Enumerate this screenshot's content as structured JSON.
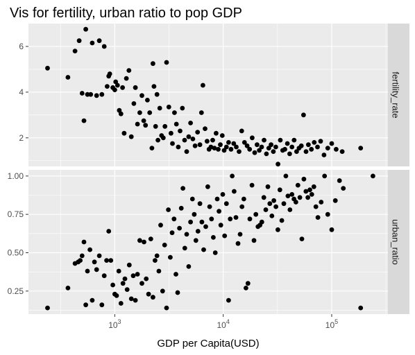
{
  "chart_data": {
    "type": "scatter",
    "title": "Vis for fertility, urban ratio to pop GDP",
    "xlabel": "GDP per Capita(USD)",
    "x_scale": "log10",
    "xlim": [
      160,
      330000
    ],
    "x_ticks": [
      1000,
      10000,
      100000
    ],
    "x_tick_labels": [
      {
        "base": "10",
        "exp": "3"
      },
      {
        "base": "10",
        "exp": "4"
      },
      {
        "base": "10",
        "exp": "5"
      }
    ],
    "grid": true,
    "point_color": "#000000",
    "panel_background": "#ebebeb",
    "strip_background": "#d9d9d9",
    "panels": [
      {
        "strip_label": "fertility_rate",
        "ylim": [
          0.75,
          7.0
        ],
        "y_ticks": [
          2,
          4,
          6
        ],
        "y_tick_labels": [
          "2",
          "4",
          "6"
        ],
        "points": [
          [
            240,
            5.05
          ],
          [
            370,
            4.65
          ],
          [
            430,
            5.8
          ],
          [
            470,
            6.25
          ],
          [
            500,
            3.95
          ],
          [
            520,
            2.75
          ],
          [
            540,
            6.75
          ],
          [
            560,
            3.9
          ],
          [
            600,
            3.9
          ],
          [
            620,
            6.15
          ],
          [
            680,
            3.85
          ],
          [
            720,
            6.25
          ],
          [
            760,
            3.9
          ],
          [
            800,
            6.0
          ],
          [
            850,
            4.25
          ],
          [
            880,
            4.7
          ],
          [
            900,
            4.8
          ],
          [
            960,
            4.2
          ],
          [
            1000,
            4.1
          ],
          [
            1020,
            4.45
          ],
          [
            1060,
            4.3
          ],
          [
            1100,
            3.2
          ],
          [
            1140,
            3.05
          ],
          [
            1180,
            4.2
          ],
          [
            1220,
            2.2
          ],
          [
            1280,
            4.6
          ],
          [
            1350,
            4.95
          ],
          [
            1420,
            2.05
          ],
          [
            1500,
            3.5
          ],
          [
            1550,
            4.2
          ],
          [
            1620,
            2.6
          ],
          [
            1700,
            3.1
          ],
          [
            1780,
            3.85
          ],
          [
            1850,
            2.75
          ],
          [
            1920,
            2.55
          ],
          [
            2000,
            3.65
          ],
          [
            2100,
            3.1
          ],
          [
            2200,
            1.55
          ],
          [
            2250,
            5.25
          ],
          [
            2300,
            4.25
          ],
          [
            2380,
            2.5
          ],
          [
            2450,
            3.9
          ],
          [
            2500,
            1.9
          ],
          [
            2600,
            3.3
          ],
          [
            2700,
            2.1
          ],
          [
            2800,
            2.0
          ],
          [
            2900,
            2.5
          ],
          [
            3000,
            5.3
          ],
          [
            3150,
            3.35
          ],
          [
            3300,
            2.2
          ],
          [
            3400,
            1.75
          ],
          [
            3550,
            3.1
          ],
          [
            3700,
            2.6
          ],
          [
            3850,
            1.6
          ],
          [
            4000,
            2.3
          ],
          [
            4200,
            3.3
          ],
          [
            4400,
            1.9
          ],
          [
            4600,
            1.4
          ],
          [
            4800,
            2.05
          ],
          [
            5000,
            2.65
          ],
          [
            5250,
            1.95
          ],
          [
            5500,
            1.65
          ],
          [
            5800,
            2.25
          ],
          [
            6100,
            1.7
          ],
          [
            6300,
            3.1
          ],
          [
            6500,
            4.3
          ],
          [
            6800,
            2.4
          ],
          [
            7100,
            1.85
          ],
          [
            7400,
            1.5
          ],
          [
            7700,
            1.6
          ],
          [
            8000,
            1.9
          ],
          [
            8300,
            1.55
          ],
          [
            8600,
            2.2
          ],
          [
            9000,
            1.5
          ],
          [
            9400,
            1.7
          ],
          [
            9800,
            2.1
          ],
          [
            10200,
            1.45
          ],
          [
            10700,
            1.6
          ],
          [
            11200,
            1.8
          ],
          [
            11800,
            1.5
          ],
          [
            12500,
            1.75
          ],
          [
            13200,
            1.6
          ],
          [
            14000,
            1.4
          ],
          [
            14800,
            2.3
          ],
          [
            15700,
            1.8
          ],
          [
            16600,
            1.65
          ],
          [
            17500,
            1.5
          ],
          [
            18500,
            2.0
          ],
          [
            19500,
            1.35
          ],
          [
            20500,
            1.7
          ],
          [
            21500,
            1.45
          ],
          [
            22600,
            1.6
          ],
          [
            23800,
            1.9
          ],
          [
            25000,
            1.3
          ],
          [
            26300,
            1.55
          ],
          [
            27600,
            1.7
          ],
          [
            29000,
            1.4
          ],
          [
            30500,
            1.6
          ],
          [
            32000,
            0.85
          ],
          [
            33600,
            1.9
          ],
          [
            35300,
            1.45
          ],
          [
            37000,
            1.5
          ],
          [
            39000,
            1.75
          ],
          [
            41000,
            1.3
          ],
          [
            43000,
            1.6
          ],
          [
            45000,
            1.9
          ],
          [
            47500,
            1.4
          ],
          [
            50000,
            1.55
          ],
          [
            52500,
            1.65
          ],
          [
            55000,
            3.0
          ],
          [
            58000,
            1.4
          ],
          [
            61000,
            1.7
          ],
          [
            65000,
            1.5
          ],
          [
            69000,
            1.8
          ],
          [
            74000,
            1.6
          ],
          [
            79000,
            1.85
          ],
          [
            85000,
            1.25
          ],
          [
            92000,
            1.55
          ],
          [
            100000,
            1.75
          ],
          [
            110000,
            1.5
          ],
          [
            125000,
            1.4
          ],
          [
            185000,
            1.55
          ]
        ]
      },
      {
        "strip_label": "urban_ratio",
        "ylim": [
          0.1,
          1.04
        ],
        "y_ticks": [
          0.25,
          0.5,
          0.75,
          1.0
        ],
        "y_tick_labels": [
          "0.25",
          "0.50",
          "0.75",
          "1.00"
        ],
        "points": [
          [
            240,
            0.14
          ],
          [
            370,
            0.27
          ],
          [
            430,
            0.43
          ],
          [
            460,
            0.44
          ],
          [
            480,
            0.45
          ],
          [
            500,
            0.48
          ],
          [
            520,
            0.57
          ],
          [
            540,
            0.16
          ],
          [
            560,
            0.38
          ],
          [
            590,
            0.52
          ],
          [
            620,
            0.19
          ],
          [
            650,
            0.44
          ],
          [
            680,
            0.39
          ],
          [
            720,
            0.48
          ],
          [
            760,
            0.16
          ],
          [
            800,
            0.35
          ],
          [
            840,
            0.45
          ],
          [
            880,
            0.64
          ],
          [
            920,
            0.45
          ],
          [
            960,
            0.29
          ],
          [
            1000,
            0.23
          ],
          [
            1040,
            0.22
          ],
          [
            1090,
            0.38
          ],
          [
            1140,
            0.17
          ],
          [
            1190,
            0.3
          ],
          [
            1240,
            0.33
          ],
          [
            1300,
            0.26
          ],
          [
            1360,
            0.42
          ],
          [
            1420,
            0.2
          ],
          [
            1480,
            0.35
          ],
          [
            1550,
            0.19
          ],
          [
            1620,
            0.36
          ],
          [
            1700,
            0.58
          ],
          [
            1780,
            0.3
          ],
          [
            1860,
            0.57
          ],
          [
            1950,
            0.33
          ],
          [
            2050,
            0.23
          ],
          [
            2150,
            0.59
          ],
          [
            2250,
            0.21
          ],
          [
            2350,
            0.45
          ],
          [
            2450,
            0.48
          ],
          [
            2550,
            0.38
          ],
          [
            2650,
            0.68
          ],
          [
            2760,
            0.25
          ],
          [
            2880,
            0.55
          ],
          [
            3000,
            0.14
          ],
          [
            3120,
            0.78
          ],
          [
            3250,
            0.47
          ],
          [
            3380,
            0.63
          ],
          [
            3520,
            0.72
          ],
          [
            3660,
            0.36
          ],
          [
            3800,
            0.24
          ],
          [
            3950,
            0.66
          ],
          [
            4100,
            0.79
          ],
          [
            4250,
            0.92
          ],
          [
            4420,
            0.53
          ],
          [
            4600,
            0.62
          ],
          [
            4800,
            0.41
          ],
          [
            5000,
            0.7
          ],
          [
            5200,
            0.85
          ],
          [
            5400,
            0.75
          ],
          [
            5600,
            0.58
          ],
          [
            5850,
            0.64
          ],
          [
            6100,
            0.82
          ],
          [
            6350,
            0.7
          ],
          [
            6600,
            0.52
          ],
          [
            6900,
            0.67
          ],
          [
            7200,
            0.93
          ],
          [
            7500,
            0.8
          ],
          [
            7800,
            0.72
          ],
          [
            8100,
            0.6
          ],
          [
            8450,
            0.5
          ],
          [
            8800,
            0.85
          ],
          [
            9150,
            0.77
          ],
          [
            9500,
            0.68
          ],
          [
            9900,
            0.88
          ],
          [
            10300,
            0.61
          ],
          [
            10700,
            0.82
          ],
          [
            11200,
            0.19
          ],
          [
            11600,
            0.72
          ],
          [
            12100,
            1.0
          ],
          [
            12600,
            0.9
          ],
          [
            13100,
            0.73
          ],
          [
            13700,
            0.56
          ],
          [
            14300,
            0.62
          ],
          [
            14900,
            0.8
          ],
          [
            15500,
            0.85
          ],
          [
            16200,
            0.27
          ],
          [
            16900,
            0.3
          ],
          [
            17600,
            0.72
          ],
          [
            18400,
            0.94
          ],
          [
            19200,
            0.58
          ],
          [
            20000,
            0.75
          ],
          [
            20900,
            0.67
          ],
          [
            21800,
            0.68
          ],
          [
            22700,
            0.7
          ],
          [
            23700,
            0.86
          ],
          [
            24700,
            0.78
          ],
          [
            25800,
            0.93
          ],
          [
            26900,
            0.82
          ],
          [
            28100,
            0.74
          ],
          [
            29300,
            0.84
          ],
          [
            30600,
            0.8
          ],
          [
            31900,
            0.65
          ],
          [
            33300,
            0.91
          ],
          [
            34700,
            0.71
          ],
          [
            36200,
            0.82
          ],
          [
            37800,
            1.0
          ],
          [
            39500,
            0.87
          ],
          [
            41200,
            0.78
          ],
          [
            43000,
            0.88
          ],
          [
            44900,
            0.85
          ],
          [
            46800,
            0.83
          ],
          [
            48800,
            0.94
          ],
          [
            50900,
            0.86
          ],
          [
            53100,
            0.59
          ],
          [
            55400,
            0.98
          ],
          [
            57800,
            0.9
          ],
          [
            60300,
            0.86
          ],
          [
            62900,
            0.91
          ],
          [
            65600,
            0.88
          ],
          [
            68500,
            0.93
          ],
          [
            71500,
            0.8
          ],
          [
            74600,
            0.73
          ],
          [
            80000,
            0.83
          ],
          [
            86000,
            1.0
          ],
          [
            92000,
            0.75
          ],
          [
            100000,
            0.65
          ],
          [
            108000,
            0.84
          ],
          [
            118000,
            0.97
          ],
          [
            128000,
            0.92
          ],
          [
            185000,
            0.14
          ],
          [
            240000,
            1.0
          ]
        ]
      }
    ]
  }
}
